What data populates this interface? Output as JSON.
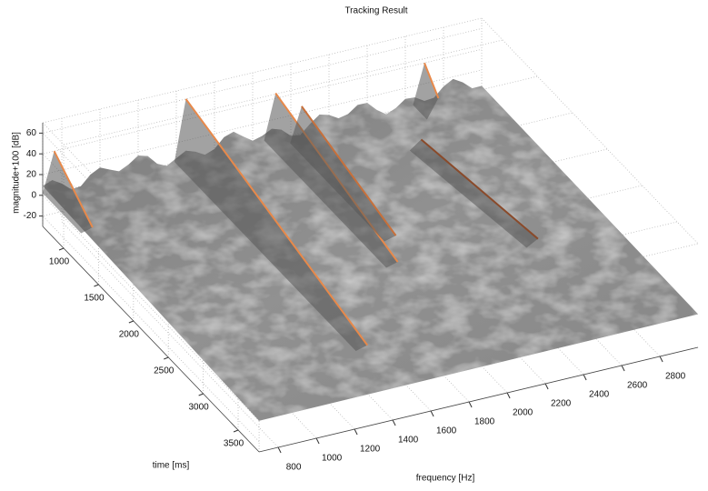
{
  "chart_data": {
    "type": "surface3d",
    "title": "Tracking Result",
    "xlabel": "frequency [Hz]",
    "ylabel": "time [ms]",
    "zlabel": "magnitude+100 [dB]",
    "xlim": [
      700,
      3000
    ],
    "ylim": [
      700,
      3800
    ],
    "zlim": [
      -30,
      70
    ],
    "xticks": [
      800,
      1000,
      1200,
      1400,
      1600,
      1800,
      2000,
      2200,
      2400,
      2600,
      2800
    ],
    "yticks": [
      1000,
      1500,
      2000,
      2500,
      3000,
      3500
    ],
    "zticks": [
      -20,
      0,
      20,
      40,
      60
    ],
    "grid": true,
    "surface_color": "#8c8c8c",
    "tracks": [
      {
        "color": "#e8894a",
        "x": [
          1450,
          1450
        ],
        "y": [
          700,
          3300
        ],
        "z": [
          60,
          5
        ]
      },
      {
        "color": "#e8894a",
        "x": [
          1920,
          1920
        ],
        "y": [
          700,
          2450
        ],
        "z": [
          45,
          5
        ]
      },
      {
        "color": "#c8703a",
        "x": [
          2020,
          2020
        ],
        "y": [
          800,
          2150
        ],
        "z": [
          35,
          5
        ]
      },
      {
        "color": "#e8894a",
        "x": [
          760,
          760
        ],
        "y": [
          700,
          1250
        ],
        "z": [
          40,
          5
        ]
      },
      {
        "color": "#e8894a",
        "x": [
          2700,
          2700
        ],
        "y": [
          700,
          900
        ],
        "z": [
          40,
          20
        ]
      },
      {
        "color": "#8a4a2a",
        "x": [
          2500,
          2600
        ],
        "y": [
          1200,
          2600
        ],
        "z": [
          10,
          8
        ]
      }
    ]
  }
}
